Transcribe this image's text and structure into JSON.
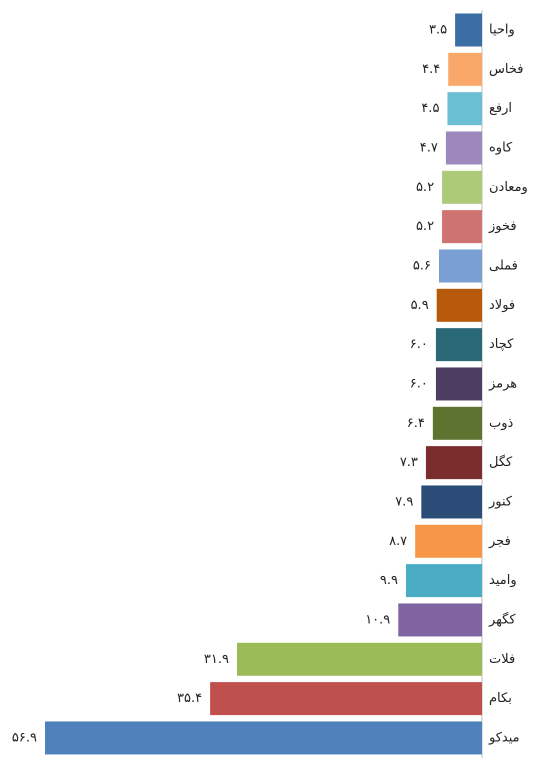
{
  "chart_data": {
    "type": "barh",
    "categories": [
      "واحیا",
      "فخاس",
      "ارفع",
      "کاوه",
      "ومعادن",
      "فخوز",
      "فملی",
      "فولاد",
      "کچاد",
      "هرمز",
      "ذوب",
      "کگل",
      "کنور",
      "فجر",
      "وامید",
      "کگهر",
      "فلات",
      "بکام",
      "میدکو"
    ],
    "values": [
      3.5,
      4.4,
      4.5,
      4.7,
      5.2,
      5.2,
      5.6,
      5.9,
      6.0,
      6.0,
      6.4,
      7.3,
      7.9,
      8.7,
      9.9,
      10.9,
      31.9,
      35.4,
      56.9
    ],
    "value_labels": [
      "۳.۵",
      "۴.۴",
      "۴.۵",
      "۴.۷",
      "۵.۲",
      "۵.۲",
      "۵.۶",
      "۵.۹",
      "۶.۰",
      "۶.۰",
      "۶.۴",
      "۷.۳",
      "۷.۹",
      "۸.۷",
      "۹.۹",
      "۱۰.۹",
      "۳۱.۹",
      "۳۵.۴",
      "۵۶.۹"
    ],
    "colors": [
      "#3a6ea5",
      "#f9a86a",
      "#6bbfd3",
      "#9c88bc",
      "#adc97a",
      "#cf7370",
      "#7a9fd2",
      "#b75a0c",
      "#2a6a78",
      "#4e3d62",
      "#5f7330",
      "#7a2d2c",
      "#2b4c77",
      "#f79646",
      "#4bacc6",
      "#8064a2",
      "#9bbb59",
      "#c0504d",
      "#4f81bd"
    ]
  }
}
